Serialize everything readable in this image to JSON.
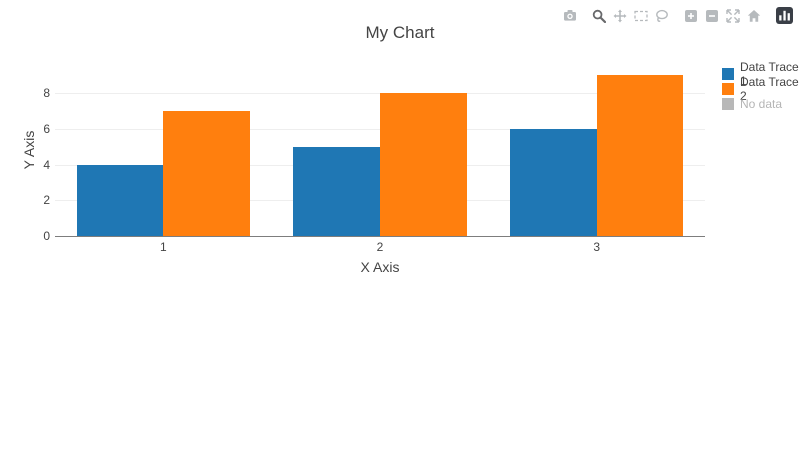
{
  "title": "My Chart",
  "chart_data": {
    "type": "bar",
    "bar_mode": "group",
    "title": "My Chart",
    "xlabel": "X Axis",
    "ylabel": "Y Axis",
    "categories": [
      "1",
      "2",
      "3"
    ],
    "series": [
      {
        "name": "Data Trace 1",
        "color": "#1f77b4",
        "values": [
          4,
          5,
          6
        ]
      },
      {
        "name": "Data Trace 2",
        "color": "#ff7f0e",
        "values": [
          7,
          8,
          9
        ]
      },
      {
        "name": "No data",
        "color": "#b8b8b8",
        "values": [],
        "legend_only": true
      }
    ],
    "yticks": [
      0,
      2,
      4,
      6,
      8
    ],
    "ylim": [
      0,
      9.5
    ],
    "grid": true,
    "legend_position": "right-top",
    "background": "#ffffff"
  },
  "legend": {
    "items": [
      {
        "label": "Data Trace 1",
        "color": "#1f77b4",
        "muted": false
      },
      {
        "label": "Data Trace 2",
        "color": "#ff7f0e",
        "muted": false
      },
      {
        "label": "No data",
        "color": "#b8b8b8",
        "muted": true
      }
    ]
  },
  "modebar": {
    "icons": [
      "camera",
      "zoom",
      "pan",
      "box-select",
      "lasso-select",
      "zoom-in",
      "zoom-out",
      "autoscale",
      "home",
      "plotly-logo"
    ],
    "active_tool": "zoom",
    "logo_background": "#3a3f47"
  },
  "colors": {
    "text": "#444444",
    "grid": "#eeeeee",
    "zeroline": "#7d7d7d",
    "muted_text": "#b5b5b5",
    "modebar_icon": "#b6babd",
    "modebar_icon_active": "#68696b"
  }
}
